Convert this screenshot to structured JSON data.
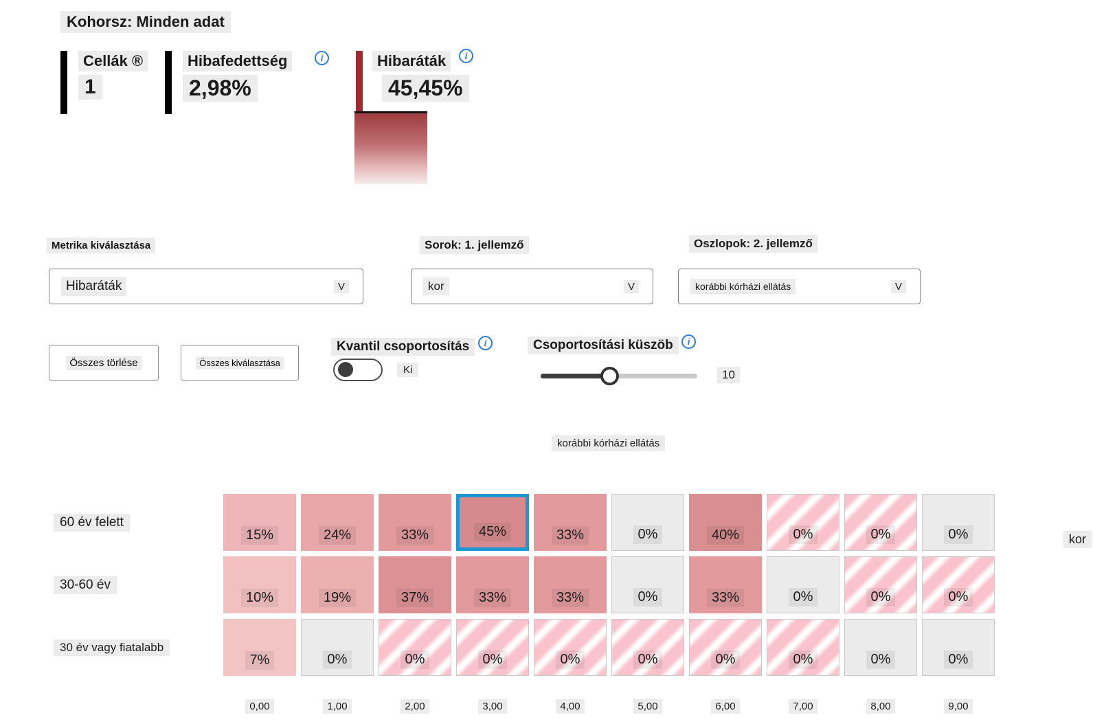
{
  "header": {
    "cohort_label": "Kohorsz: Minden adat"
  },
  "icons": {
    "dropdown_chevron": "V",
    "info": "i"
  },
  "metrics": {
    "cells": {
      "label": "Cellák ®",
      "value": "1"
    },
    "coverage": {
      "label": "Hibafedettség",
      "value": "2,98%"
    },
    "rate": {
      "label": "Hibaráták",
      "value": "45,45%"
    }
  },
  "selectors": {
    "metric": {
      "label": "Metrika kiválasztása",
      "value": "Hibaráták"
    },
    "rows": {
      "label": "Sorok: 1. jellemző",
      "value": "kor"
    },
    "columns": {
      "label": "Oszlopok: 2. jellemző",
      "value": "korábbi kórházi ellátás"
    }
  },
  "actions": {
    "clear_all": "Összes törlése",
    "select_all": "Összes kiválasztása"
  },
  "quantile": {
    "label": "Kvantil csoportosítás",
    "state": "Ki"
  },
  "threshold": {
    "label": "Csoportosítási küszöb",
    "value": "10"
  },
  "chart_data": {
    "type": "heatmap",
    "x_axis_label": "korábbi kórházi ellátás",
    "y_axis_label": "kor",
    "columns": [
      "0,00",
      "1,00",
      "2,00",
      "3,00",
      "4,00",
      "5,00",
      "6,00",
      "7,00",
      "8,00",
      "9,00"
    ],
    "rows": [
      {
        "label": "60 év felett",
        "cells": [
          {
            "text": "15%",
            "type": "shade",
            "color": "#efb6b9"
          },
          {
            "text": "24%",
            "type": "shade",
            "color": "#e8a7a9"
          },
          {
            "text": "33%",
            "type": "shade",
            "color": "#e29a9d"
          },
          {
            "text": "45%",
            "type": "shade",
            "color": "#d78a8d",
            "selected": true
          },
          {
            "text": "33%",
            "type": "shade",
            "color": "#e29a9d"
          },
          {
            "text": "0%",
            "type": "gray"
          },
          {
            "text": "40%",
            "type": "shade",
            "color": "#d98e90"
          },
          {
            "text": "0%",
            "type": "striped"
          },
          {
            "text": "0%",
            "type": "striped"
          },
          {
            "text": "0%",
            "type": "gray"
          }
        ]
      },
      {
        "label": "30-60 év",
        "cells": [
          {
            "text": "10%",
            "type": "shade",
            "color": "#f2c0c1"
          },
          {
            "text": "19%",
            "type": "shade",
            "color": "#ecb0b1"
          },
          {
            "text": "37%",
            "type": "shade",
            "color": "#dc9294"
          },
          {
            "text": "33%",
            "type": "shade",
            "color": "#e29a9d"
          },
          {
            "text": "33%",
            "type": "shade",
            "color": "#e29a9d"
          },
          {
            "text": "0%",
            "type": "gray"
          },
          {
            "text": "33%",
            "type": "shade",
            "color": "#e29a9d"
          },
          {
            "text": "0%",
            "type": "gray"
          },
          {
            "text": "0%",
            "type": "striped"
          },
          {
            "text": "0%",
            "type": "striped"
          }
        ]
      },
      {
        "label": "30 év vagy fiatalabb",
        "cells": [
          {
            "text": "7%",
            "type": "shade",
            "color": "#f2c4c4"
          },
          {
            "text": "0%",
            "type": "gray"
          },
          {
            "text": "0%",
            "type": "striped"
          },
          {
            "text": "0%",
            "type": "striped"
          },
          {
            "text": "0%",
            "type": "striped"
          },
          {
            "text": "0%",
            "type": "striped"
          },
          {
            "text": "0%",
            "type": "striped"
          },
          {
            "text": "0%",
            "type": "striped"
          },
          {
            "text": "0%",
            "type": "gray"
          },
          {
            "text": "0%",
            "type": "gray"
          }
        ]
      }
    ]
  },
  "colors": {
    "selected_cell_border": "#1a96d2",
    "info_icon_blue": "#2b7cd8",
    "metric_bar_black": "#000000",
    "metric_bar_red": "#9e2b31",
    "legend_gradient_top": "#9d3c3f",
    "legend_gradient_bottom": "#f6ecec",
    "empty_cell_gray": "#ebebeb",
    "stripe_pink": "#f9c2cc",
    "text_highlight_bg": "#ececec"
  }
}
